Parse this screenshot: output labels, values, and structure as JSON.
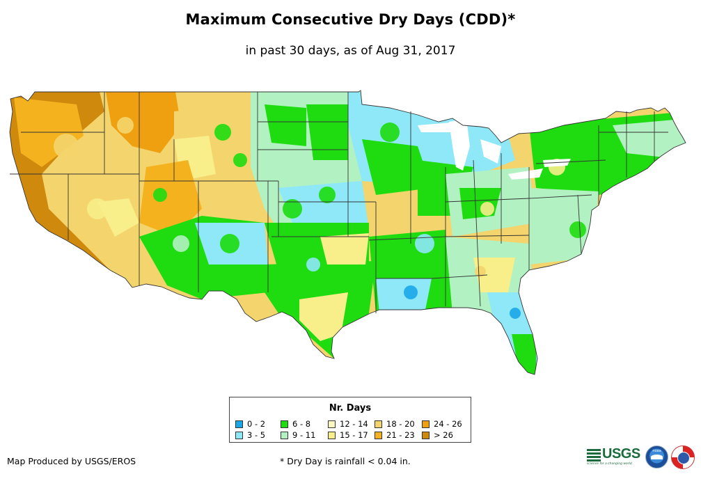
{
  "title": "Maximum Consecutive Dry Days (CDD)*",
  "subtitle": "in past 30 days, as of Aug 31, 2017",
  "legend": {
    "title": "Nr. Days",
    "items": [
      {
        "label": "0 - 2",
        "color": "#1aa7e8"
      },
      {
        "label": "3 - 5",
        "color": "#8ee8f8"
      },
      {
        "label": "6 - 8",
        "color": "#1edc10"
      },
      {
        "label": "9 - 11",
        "color": "#b2f2c2"
      },
      {
        "label": "12 - 14",
        "color": "#fbf7c2"
      },
      {
        "label": "15 - 17",
        "color": "#f8ee8a"
      },
      {
        "label": "18 - 20",
        "color": "#f4d46c"
      },
      {
        "label": "21 - 23",
        "color": "#f4b21e"
      },
      {
        "label": "24 - 26",
        "color": "#eea010"
      },
      {
        "label": "> 26",
        "color": "#cf8a0e"
      }
    ]
  },
  "credit": "Map Produced by USGS/EROS",
  "footnote": "* Dry Day is rainfall < 0.04 in.",
  "logos": {
    "usgs": "USGS",
    "usgs_tagline": "science for a changing world",
    "noaa": "noaa"
  }
}
